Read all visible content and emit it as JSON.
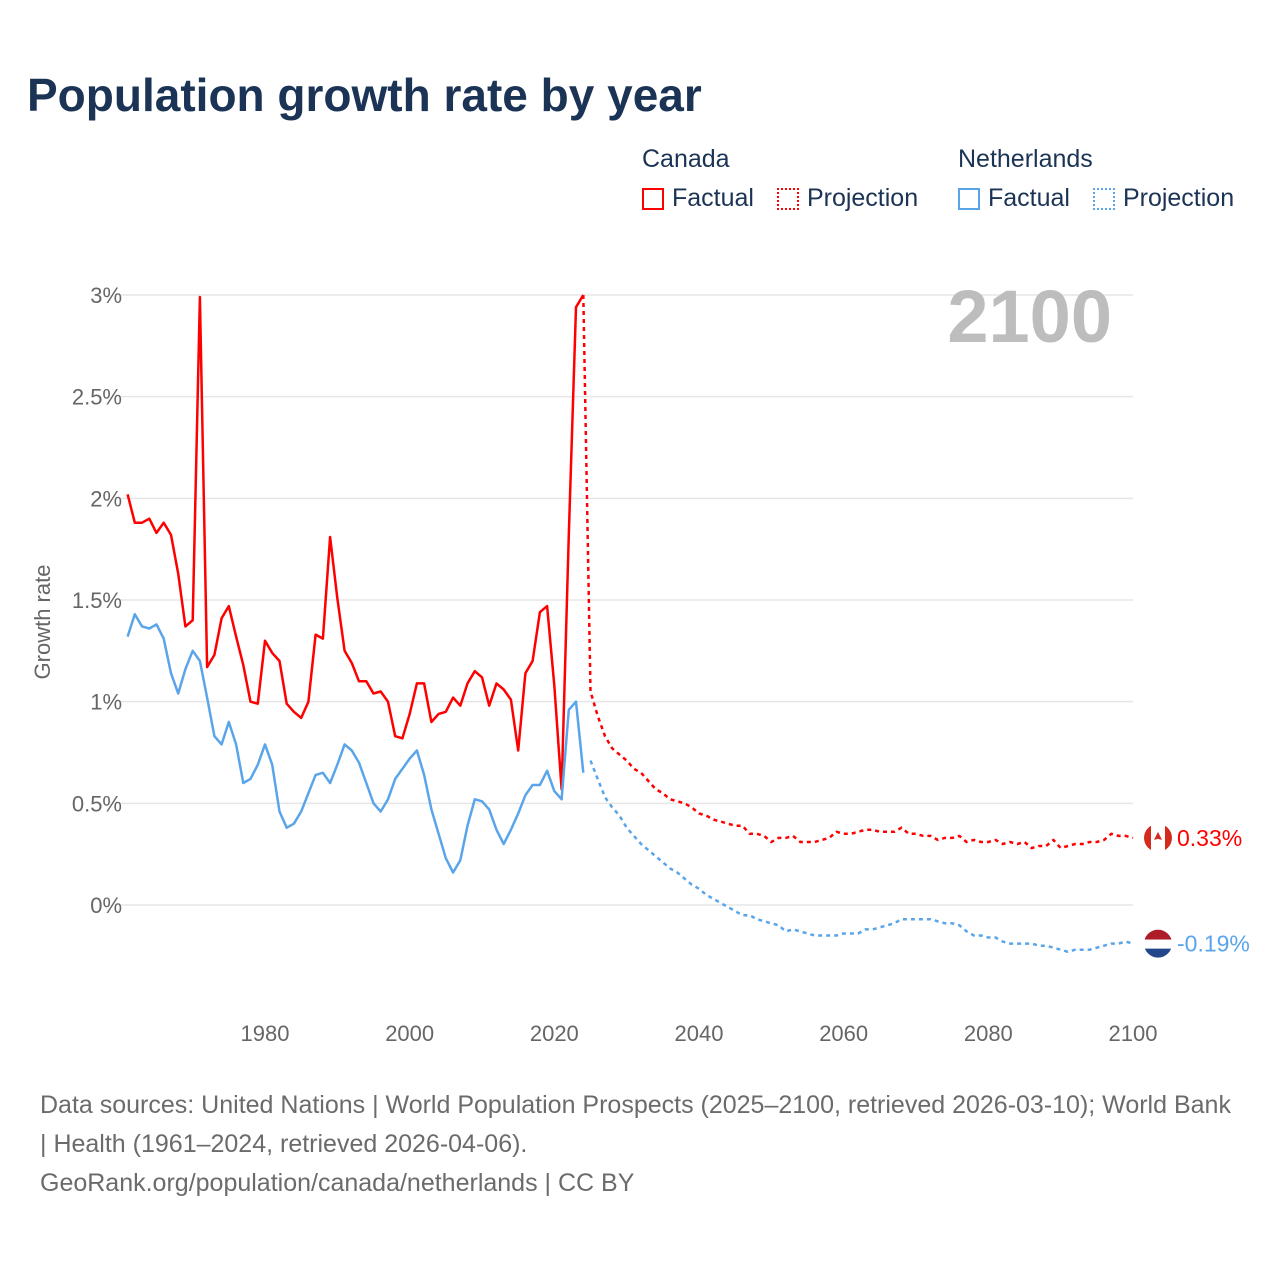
{
  "title": "Population growth rate by year",
  "legend": {
    "groups": [
      {
        "name": "Canada",
        "factual": "Factual",
        "projection": "Projection",
        "color": "#ff0000"
      },
      {
        "name": "Netherlands",
        "factual": "Factual",
        "projection": "Projection",
        "color": "#5aa5ea"
      }
    ]
  },
  "year_label": "2100",
  "footer": {
    "sources": "Data sources: United Nations | World Population Prospects (2025–2100, retrieved 2026-03-10); World Bank | Health (1961–2024, retrieved 2026-04-06).",
    "credit": "GeoRank.org/population/canada/netherlands | CC BY"
  },
  "chart_data": {
    "type": "line",
    "title": "Population growth rate by year",
    "xlabel": "",
    "ylabel": "Growth rate",
    "xlim": [
      1960,
      2100
    ],
    "ylim": [
      -0.3,
      3.05
    ],
    "xticks": [
      1980,
      2000,
      2020,
      2040,
      2060,
      2080,
      2100
    ],
    "xtick_labels": [
      "1980",
      "2000",
      "2020",
      "2040",
      "2060",
      "2080",
      "2100"
    ],
    "yticks": [
      0,
      0.5,
      1,
      1.5,
      2,
      2.5,
      3
    ],
    "ytick_labels": [
      "0%",
      "0.5%",
      "1%",
      "1.5%",
      "2%",
      "2.5%",
      "3%"
    ],
    "grid": true,
    "legend_position": "top-right",
    "series": [
      {
        "name": "Canada Factual",
        "style": "solid",
        "color": "#ff0000",
        "start_year": 1961,
        "values": [
          2.02,
          1.88,
          1.88,
          1.9,
          1.83,
          1.88,
          1.82,
          1.63,
          1.37,
          1.4,
          2.99,
          1.17,
          1.23,
          1.41,
          1.47,
          1.32,
          1.18,
          1.0,
          0.99,
          1.3,
          1.24,
          1.2,
          0.99,
          0.95,
          0.92,
          1.0,
          1.33,
          1.31,
          1.81,
          1.51,
          1.25,
          1.19,
          1.1,
          1.1,
          1.04,
          1.05,
          1.0,
          0.83,
          0.82,
          0.94,
          1.09,
          1.09,
          0.9,
          0.94,
          0.95,
          1.02,
          0.98,
          1.09,
          1.15,
          1.12,
          0.98,
          1.09,
          1.06,
          1.01,
          0.76,
          1.14,
          1.2,
          1.44,
          1.47,
          1.08,
          0.57,
          1.82,
          2.94,
          3.0
        ]
      },
      {
        "name": "Canada Projection",
        "style": "dotted",
        "color": "#ff0000",
        "start_year": 2024,
        "values": [
          3.0,
          1.05,
          0.93,
          0.83,
          0.77,
          0.74,
          0.71,
          0.67,
          0.65,
          0.61,
          0.57,
          0.55,
          0.52,
          0.51,
          0.5,
          0.48,
          0.45,
          0.44,
          0.42,
          0.41,
          0.4,
          0.39,
          0.39,
          0.35,
          0.35,
          0.34,
          0.31,
          0.33,
          0.33,
          0.34,
          0.31,
          0.31,
          0.31,
          0.32,
          0.33,
          0.36,
          0.35,
          0.35,
          0.36,
          0.37,
          0.37,
          0.36,
          0.36,
          0.36,
          0.38,
          0.35,
          0.35,
          0.34,
          0.34,
          0.32,
          0.33,
          0.33,
          0.34,
          0.31,
          0.32,
          0.31,
          0.31,
          0.32,
          0.3,
          0.31,
          0.3,
          0.31,
          0.28,
          0.29,
          0.29,
          0.32,
          0.28,
          0.29,
          0.3,
          0.3,
          0.31,
          0.31,
          0.32,
          0.35,
          0.34,
          0.34,
          0.33
        ]
      },
      {
        "name": "Netherlands Factual",
        "style": "solid",
        "color": "#5aa5ea",
        "start_year": 1961,
        "values": [
          1.32,
          1.43,
          1.37,
          1.36,
          1.38,
          1.31,
          1.14,
          1.04,
          1.16,
          1.25,
          1.2,
          1.02,
          0.83,
          0.79,
          0.9,
          0.79,
          0.6,
          0.62,
          0.69,
          0.79,
          0.69,
          0.46,
          0.38,
          0.4,
          0.46,
          0.55,
          0.64,
          0.65,
          0.6,
          0.69,
          0.79,
          0.76,
          0.7,
          0.6,
          0.5,
          0.46,
          0.52,
          0.62,
          0.67,
          0.72,
          0.76,
          0.64,
          0.47,
          0.35,
          0.23,
          0.16,
          0.22,
          0.39,
          0.52,
          0.51,
          0.47,
          0.37,
          0.3,
          0.37,
          0.45,
          0.54,
          0.59,
          0.59,
          0.66,
          0.56,
          0.52,
          0.96,
          1.0,
          0.65
        ]
      },
      {
        "name": "Netherlands Projection",
        "style": "dotted",
        "color": "#5aa5ea",
        "start_year": 2025,
        "values": [
          0.71,
          0.62,
          0.53,
          0.48,
          0.44,
          0.38,
          0.34,
          0.3,
          0.27,
          0.24,
          0.21,
          0.18,
          0.16,
          0.13,
          0.1,
          0.08,
          0.05,
          0.03,
          0.01,
          -0.01,
          -0.03,
          -0.05,
          -0.05,
          -0.07,
          -0.08,
          -0.09,
          -0.1,
          -0.13,
          -0.12,
          -0.13,
          -0.14,
          -0.15,
          -0.15,
          -0.15,
          -0.15,
          -0.14,
          -0.14,
          -0.14,
          -0.12,
          -0.12,
          -0.11,
          -0.1,
          -0.09,
          -0.07,
          -0.07,
          -0.07,
          -0.07,
          -0.07,
          -0.08,
          -0.09,
          -0.09,
          -0.1,
          -0.13,
          -0.15,
          -0.15,
          -0.16,
          -0.16,
          -0.18,
          -0.19,
          -0.19,
          -0.19,
          -0.19,
          -0.2,
          -0.2,
          -0.21,
          -0.22,
          -0.23,
          -0.22,
          -0.22,
          -0.22,
          -0.21,
          -0.2,
          -0.19,
          -0.19,
          -0.18,
          -0.19
        ]
      }
    ],
    "end_labels": [
      {
        "country": "Canada",
        "text": "0.33%",
        "value": 0.33,
        "color": "#ff0000"
      },
      {
        "country": "Netherlands",
        "text": "-0.19%",
        "value": -0.19,
        "color": "#5aa5ea"
      }
    ]
  }
}
